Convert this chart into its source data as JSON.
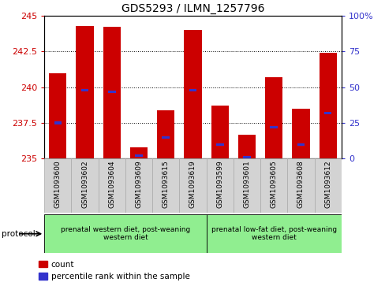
{
  "title": "GDS5293 / ILMN_1257796",
  "samples": [
    "GSM1093600",
    "GSM1093602",
    "GSM1093604",
    "GSM1093609",
    "GSM1093615",
    "GSM1093619",
    "GSM1093599",
    "GSM1093601",
    "GSM1093605",
    "GSM1093608",
    "GSM1093612"
  ],
  "red_values": [
    241.0,
    244.3,
    244.2,
    235.8,
    238.4,
    244.0,
    238.7,
    236.7,
    240.7,
    238.5,
    242.4
  ],
  "blue_values_pct": [
    25,
    48,
    47,
    2,
    15,
    48,
    10,
    1,
    22,
    10,
    32
  ],
  "ylim_left": [
    235,
    245
  ],
  "ylim_right": [
    0,
    100
  ],
  "yticks_left": [
    235,
    237.5,
    240,
    242.5,
    245
  ],
  "yticks_right": [
    0,
    25,
    50,
    75,
    100
  ],
  "bar_color_red": "#cc0000",
  "bar_color_blue": "#3333cc",
  "group1_label": "prenatal western diet, post-weaning\nwestern diet",
  "group2_label": "prenatal low-fat diet, post-weaning\nwestern diet",
  "group1_indices": [
    0,
    1,
    2,
    3,
    4,
    5
  ],
  "group2_indices": [
    6,
    7,
    8,
    9,
    10
  ],
  "group_color": "#90EE90",
  "protocol_label": "protocol",
  "legend_red_label": "count",
  "legend_blue_label": "percentile rank within the sample",
  "ylabel_left_color": "#cc0000",
  "ylabel_right_color": "#3333cc",
  "bar_bottom": 235,
  "bar_width": 0.65
}
